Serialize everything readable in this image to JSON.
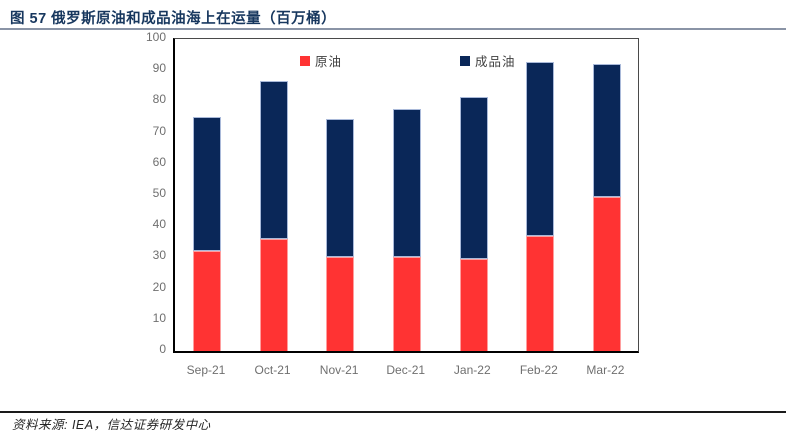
{
  "figure": {
    "title": "图 57  俄罗斯原油和成品油海上在运量（百万桶）",
    "source": "资料来源: IEA，信达证券研发中心"
  },
  "chart_data": {
    "type": "bar",
    "stacked": true,
    "title": "图 57 俄罗斯原油和成品油海上在运量（百万桶）",
    "categories": [
      "Sep-21",
      "Oct-21",
      "Nov-21",
      "Dec-21",
      "Jan-22",
      "Feb-22",
      "Mar-22"
    ],
    "series": [
      {
        "name": "原油",
        "color": "#ff3333",
        "border_color": "#ff9e9e",
        "values": [
          32,
          36,
          30,
          30,
          29.5,
          37,
          49.5
        ]
      },
      {
        "name": "成品油",
        "color": "#0a2758",
        "border_color": "#a9b9d9",
        "values": [
          43,
          50.5,
          44.5,
          47.5,
          52,
          55.5,
          42.5
        ]
      }
    ],
    "totals": [
      75,
      86.5,
      74.5,
      77.5,
      81.5,
      92.5,
      92
    ],
    "xlabel": "",
    "ylabel": "",
    "ylim": [
      0,
      100
    ],
    "yticks": [
      0,
      10,
      20,
      30,
      40,
      50,
      60,
      70,
      80,
      90,
      100
    ],
    "grid": false,
    "legend_position": "top-inside"
  },
  "colors": {
    "title_text": "#17375e",
    "axis_label": "#6f6f6f",
    "source_text": "#262626"
  }
}
